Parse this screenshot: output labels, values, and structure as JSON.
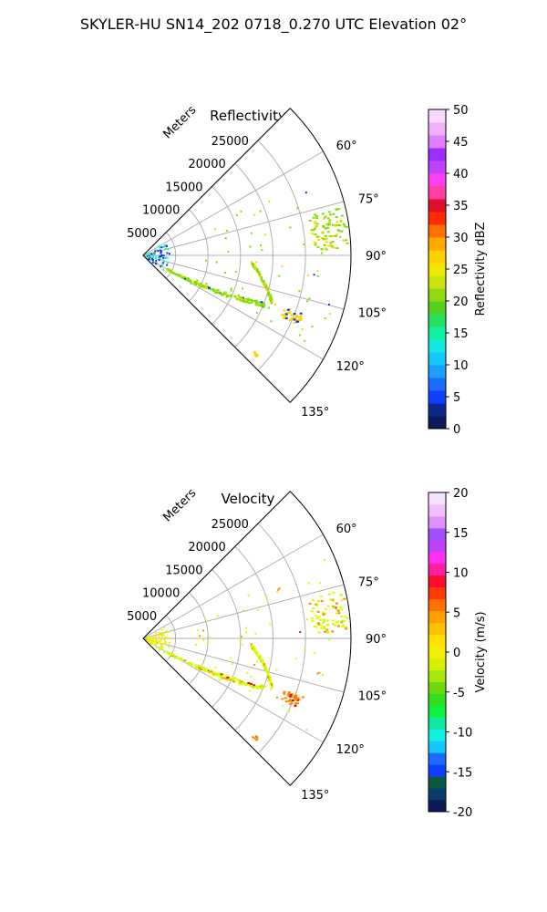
{
  "figure": {
    "suptitle": "SKYLER-HU  SN14_202  0718_0.270 UTC Elevation 02°"
  },
  "chart_data": [
    {
      "type": "polar-sector",
      "title": "Reflectivity",
      "radial_label": "Meters",
      "r_ticks": [
        "5000",
        "10000",
        "15000",
        "20000",
        "25000"
      ],
      "r_max": 32000,
      "theta_range_deg": [
        45,
        135
      ],
      "theta_ticks": [
        "60°",
        "75°",
        "90°",
        "105°",
        "120°",
        "135°"
      ],
      "colorbar": {
        "label": "Reflectivity dBZ",
        "min": 0,
        "max": 50,
        "ticks": [
          "0",
          "5",
          "10",
          "15",
          "20",
          "25",
          "30",
          "35",
          "40",
          "45",
          "50"
        ]
      },
      "scatter_color": [
        "#2ff0a0",
        "#7fe000",
        "#ffd400",
        "#0a2cff"
      ]
    },
    {
      "type": "polar-sector",
      "title": "Velocity",
      "radial_label": "Meters",
      "r_ticks": [
        "5000",
        "10000",
        "15000",
        "20000",
        "25000"
      ],
      "r_max": 32000,
      "theta_range_deg": [
        45,
        135
      ],
      "theta_ticks": [
        "60°",
        "75°",
        "90°",
        "105°",
        "120°",
        "135°"
      ],
      "colorbar": {
        "label": "Velocity (m/s)",
        "min": -20,
        "max": 20,
        "ticks": [
          "-20",
          "-15",
          "-10",
          "-5",
          "0",
          "5",
          "10",
          "15",
          "20"
        ]
      },
      "scatter_color": [
        "#ffe800",
        "#d0ff00",
        "#ff8a00",
        "#e01010"
      ]
    }
  ]
}
